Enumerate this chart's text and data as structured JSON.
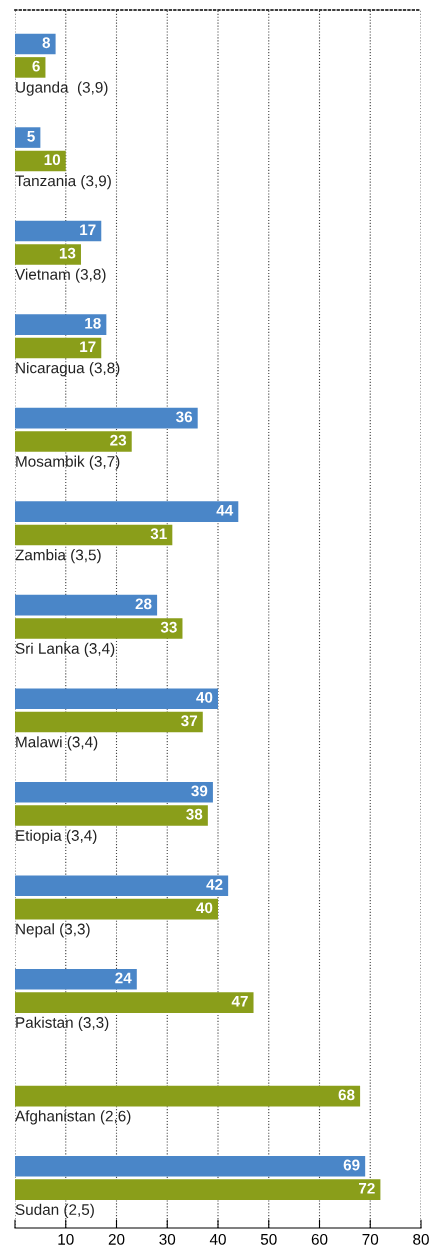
{
  "chart_data": {
    "type": "bar",
    "orientation": "horizontal",
    "categories": [
      "Uganda  (3,9)",
      "Tanzania (3,9)",
      "Vietnam (3,8)",
      "Nicaragua (3,8)",
      "Mosambik (3,7)",
      "Zambia (3,5)",
      "Sri Lanka (3,4)",
      "Malawi (3,4)",
      "Etiopia (3,4)",
      "Nepal (3,3)",
      "Pakistan (3,3)",
      "Afghanistan (2,6)",
      "Sudan (2,5)"
    ],
    "series": [
      {
        "color": "#4a86c8",
        "values": [
          8,
          5,
          17,
          18,
          36,
          44,
          28,
          40,
          39,
          42,
          24,
          null,
          69
        ]
      },
      {
        "color": "#8a9e1a",
        "values": [
          6,
          10,
          13,
          17,
          23,
          31,
          33,
          37,
          38,
          40,
          47,
          68,
          72
        ]
      }
    ],
    "xlim": [
      0,
      80
    ],
    "xticks": [
      {
        "value": 0,
        "label": null
      },
      10,
      20,
      30,
      40,
      50,
      60,
      70,
      80
    ],
    "grid": "x",
    "data_labels": true,
    "legend": false
  }
}
